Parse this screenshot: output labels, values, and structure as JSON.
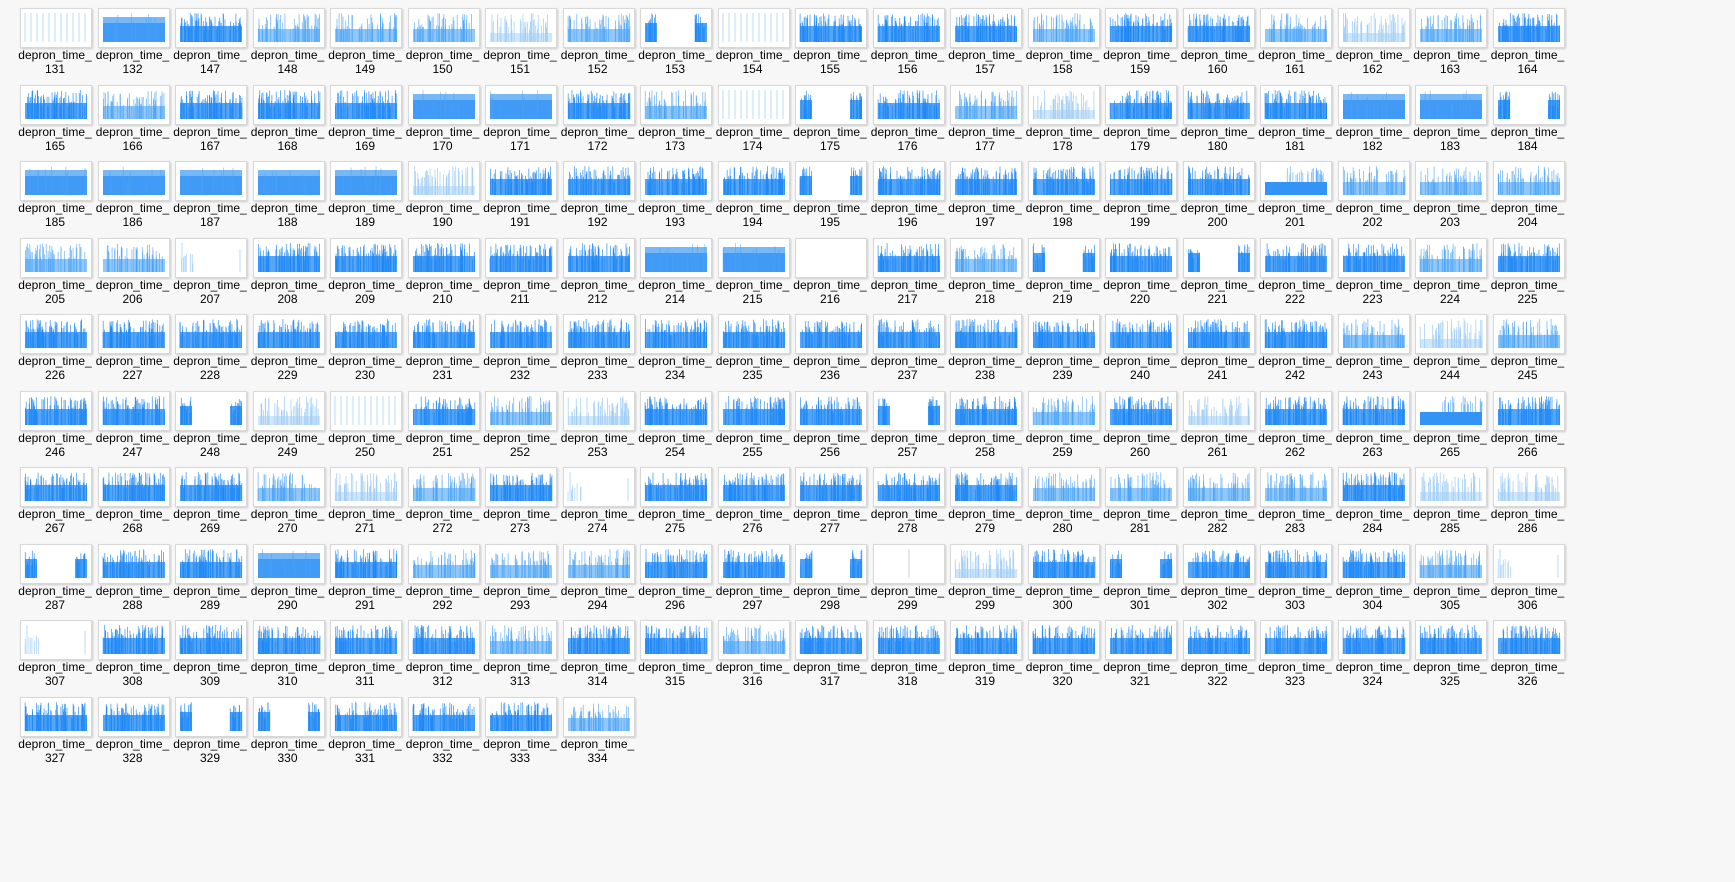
{
  "file_prefix": "depron_time_",
  "icon": "plot-thumbnail-icon",
  "colors": {
    "accent": "#1e88f5",
    "light": "#9fcdf7",
    "mid": "#4aa3f5",
    "background": "#f7f7f7"
  },
  "files": [
    {
      "n": "131",
      "s": "lines"
    },
    {
      "n": "132",
      "s": "block"
    },
    {
      "n": "147",
      "s": "dense"
    },
    {
      "n": "148",
      "s": "medium"
    },
    {
      "n": "149",
      "s": "medium"
    },
    {
      "n": "150",
      "s": "medium"
    },
    {
      "n": "151",
      "s": "light"
    },
    {
      "n": "152",
      "s": "medium"
    },
    {
      "n": "153",
      "s": "gap"
    },
    {
      "n": "154",
      "s": "lines"
    },
    {
      "n": "155",
      "s": "dense"
    },
    {
      "n": "156",
      "s": "dense"
    },
    {
      "n": "157",
      "s": "dense"
    },
    {
      "n": "158",
      "s": "medium"
    },
    {
      "n": "159",
      "s": "dense"
    },
    {
      "n": "160",
      "s": "dense"
    },
    {
      "n": "161",
      "s": "medium"
    },
    {
      "n": "162",
      "s": "light"
    },
    {
      "n": "163",
      "s": "medium"
    },
    {
      "n": "164",
      "s": "dense"
    },
    {
      "n": "165",
      "s": "dense"
    },
    {
      "n": "166",
      "s": "medium"
    },
    {
      "n": "167",
      "s": "dense"
    },
    {
      "n": "168",
      "s": "dense"
    },
    {
      "n": "169",
      "s": "dense"
    },
    {
      "n": "170",
      "s": "block"
    },
    {
      "n": "171",
      "s": "block"
    },
    {
      "n": "172",
      "s": "dense"
    },
    {
      "n": "173",
      "s": "medium"
    },
    {
      "n": "174",
      "s": "lines"
    },
    {
      "n": "175",
      "s": "gap"
    },
    {
      "n": "176",
      "s": "dense"
    },
    {
      "n": "177",
      "s": "medium"
    },
    {
      "n": "178",
      "s": "light"
    },
    {
      "n": "179",
      "s": "dense"
    },
    {
      "n": "180",
      "s": "dense"
    },
    {
      "n": "181",
      "s": "dense"
    },
    {
      "n": "182",
      "s": "block"
    },
    {
      "n": "183",
      "s": "block"
    },
    {
      "n": "184",
      "s": "gap"
    },
    {
      "n": "185",
      "s": "block"
    },
    {
      "n": "186",
      "s": "block"
    },
    {
      "n": "187",
      "s": "block"
    },
    {
      "n": "188",
      "s": "block"
    },
    {
      "n": "189",
      "s": "block"
    },
    {
      "n": "190",
      "s": "light"
    },
    {
      "n": "191",
      "s": "dense"
    },
    {
      "n": "192",
      "s": "dense"
    },
    {
      "n": "193",
      "s": "dense"
    },
    {
      "n": "194",
      "s": "dense"
    },
    {
      "n": "195",
      "s": "gap"
    },
    {
      "n": "196",
      "s": "dense"
    },
    {
      "n": "197",
      "s": "dense"
    },
    {
      "n": "198",
      "s": "dense"
    },
    {
      "n": "199",
      "s": "dense"
    },
    {
      "n": "200",
      "s": "dense"
    },
    {
      "n": "201",
      "s": "bottom"
    },
    {
      "n": "202",
      "s": "medium"
    },
    {
      "n": "203",
      "s": "medium"
    },
    {
      "n": "204",
      "s": "medium"
    },
    {
      "n": "205",
      "s": "medium"
    },
    {
      "n": "206",
      "s": "medium"
    },
    {
      "n": "207",
      "s": "sparse"
    },
    {
      "n": "208",
      "s": "dense"
    },
    {
      "n": "209",
      "s": "dense"
    },
    {
      "n": "210",
      "s": "dense"
    },
    {
      "n": "211",
      "s": "dense"
    },
    {
      "n": "212",
      "s": "dense"
    },
    {
      "n": "214",
      "s": "block"
    },
    {
      "n": "215",
      "s": "block"
    },
    {
      "n": "216",
      "s": "empty"
    },
    {
      "n": "217",
      "s": "dense"
    },
    {
      "n": "218",
      "s": "medium"
    },
    {
      "n": "219",
      "s": "gap"
    },
    {
      "n": "220",
      "s": "dense"
    },
    {
      "n": "221",
      "s": "gap"
    },
    {
      "n": "222",
      "s": "dense"
    },
    {
      "n": "223",
      "s": "dense"
    },
    {
      "n": "224",
      "s": "medium"
    },
    {
      "n": "225",
      "s": "dense"
    },
    {
      "n": "226",
      "s": "dense"
    },
    {
      "n": "227",
      "s": "dense"
    },
    {
      "n": "228",
      "s": "dense"
    },
    {
      "n": "229",
      "s": "dense"
    },
    {
      "n": "230",
      "s": "dense"
    },
    {
      "n": "231",
      "s": "dense"
    },
    {
      "n": "232",
      "s": "dense"
    },
    {
      "n": "233",
      "s": "dense"
    },
    {
      "n": "234",
      "s": "dense"
    },
    {
      "n": "235",
      "s": "dense"
    },
    {
      "n": "236",
      "s": "dense"
    },
    {
      "n": "237",
      "s": "dense"
    },
    {
      "n": "238",
      "s": "dense"
    },
    {
      "n": "239",
      "s": "dense"
    },
    {
      "n": "240",
      "s": "dense"
    },
    {
      "n": "241",
      "s": "dense"
    },
    {
      "n": "242",
      "s": "dense"
    },
    {
      "n": "243",
      "s": "medium"
    },
    {
      "n": "244",
      "s": "light"
    },
    {
      "n": "245",
      "s": "medium"
    },
    {
      "n": "246",
      "s": "dense"
    },
    {
      "n": "247",
      "s": "dense"
    },
    {
      "n": "248",
      "s": "gap"
    },
    {
      "n": "249",
      "s": "light"
    },
    {
      "n": "250",
      "s": "lines"
    },
    {
      "n": "251",
      "s": "dense"
    },
    {
      "n": "252",
      "s": "medium"
    },
    {
      "n": "253",
      "s": "light"
    },
    {
      "n": "254",
      "s": "dense"
    },
    {
      "n": "255",
      "s": "dense"
    },
    {
      "n": "256",
      "s": "dense"
    },
    {
      "n": "257",
      "s": "gap"
    },
    {
      "n": "258",
      "s": "dense"
    },
    {
      "n": "259",
      "s": "medium"
    },
    {
      "n": "260",
      "s": "dense"
    },
    {
      "n": "261",
      "s": "light"
    },
    {
      "n": "262",
      "s": "dense"
    },
    {
      "n": "263",
      "s": "dense"
    },
    {
      "n": "265",
      "s": "bottom"
    },
    {
      "n": "266",
      "s": "dense"
    },
    {
      "n": "267",
      "s": "dense"
    },
    {
      "n": "268",
      "s": "dense"
    },
    {
      "n": "269",
      "s": "dense"
    },
    {
      "n": "270",
      "s": "medium"
    },
    {
      "n": "271",
      "s": "light"
    },
    {
      "n": "272",
      "s": "medium"
    },
    {
      "n": "273",
      "s": "dense"
    },
    {
      "n": "274",
      "s": "sparse"
    },
    {
      "n": "275",
      "s": "dense"
    },
    {
      "n": "276",
      "s": "dense"
    },
    {
      "n": "277",
      "s": "dense"
    },
    {
      "n": "278",
      "s": "dense"
    },
    {
      "n": "279",
      "s": "dense"
    },
    {
      "n": "280",
      "s": "medium"
    },
    {
      "n": "281",
      "s": "medium"
    },
    {
      "n": "282",
      "s": "medium"
    },
    {
      "n": "283",
      "s": "medium"
    },
    {
      "n": "284",
      "s": "dense"
    },
    {
      "n": "285",
      "s": "light"
    },
    {
      "n": "286",
      "s": "light"
    },
    {
      "n": "287",
      "s": "gap"
    },
    {
      "n": "288",
      "s": "dense"
    },
    {
      "n": "289",
      "s": "dense"
    },
    {
      "n": "290",
      "s": "block"
    },
    {
      "n": "291",
      "s": "dense"
    },
    {
      "n": "292",
      "s": "medium"
    },
    {
      "n": "293",
      "s": "medium"
    },
    {
      "n": "294",
      "s": "medium"
    },
    {
      "n": "296",
      "s": "dense"
    },
    {
      "n": "297",
      "s": "dense"
    },
    {
      "n": "298",
      "s": "gap"
    },
    {
      "n": "299",
      "s": "empty"
    },
    {
      "n": "299",
      "s": "light"
    },
    {
      "n": "300",
      "s": "dense"
    },
    {
      "n": "301",
      "s": "gap"
    },
    {
      "n": "302",
      "s": "dense"
    },
    {
      "n": "303",
      "s": "dense"
    },
    {
      "n": "304",
      "s": "dense"
    },
    {
      "n": "305",
      "s": "medium"
    },
    {
      "n": "306",
      "s": "sparse"
    },
    {
      "n": "307",
      "s": "sparse"
    },
    {
      "n": "308",
      "s": "dense"
    },
    {
      "n": "309",
      "s": "dense"
    },
    {
      "n": "310",
      "s": "dense"
    },
    {
      "n": "311",
      "s": "dense"
    },
    {
      "n": "312",
      "s": "dense"
    },
    {
      "n": "313",
      "s": "medium"
    },
    {
      "n": "314",
      "s": "dense"
    },
    {
      "n": "315",
      "s": "dense"
    },
    {
      "n": "316",
      "s": "medium"
    },
    {
      "n": "317",
      "s": "dense"
    },
    {
      "n": "318",
      "s": "dense"
    },
    {
      "n": "319",
      "s": "dense"
    },
    {
      "n": "320",
      "s": "dense"
    },
    {
      "n": "321",
      "s": "dense"
    },
    {
      "n": "322",
      "s": "dense"
    },
    {
      "n": "323",
      "s": "dense"
    },
    {
      "n": "324",
      "s": "dense"
    },
    {
      "n": "325",
      "s": "dense"
    },
    {
      "n": "326",
      "s": "dense"
    },
    {
      "n": "327",
      "s": "dense"
    },
    {
      "n": "328",
      "s": "dense"
    },
    {
      "n": "329",
      "s": "gap"
    },
    {
      "n": "330",
      "s": "gap"
    },
    {
      "n": "331",
      "s": "dense"
    },
    {
      "n": "332",
      "s": "dense"
    },
    {
      "n": "333",
      "s": "dense"
    },
    {
      "n": "334",
      "s": "medium"
    }
  ]
}
